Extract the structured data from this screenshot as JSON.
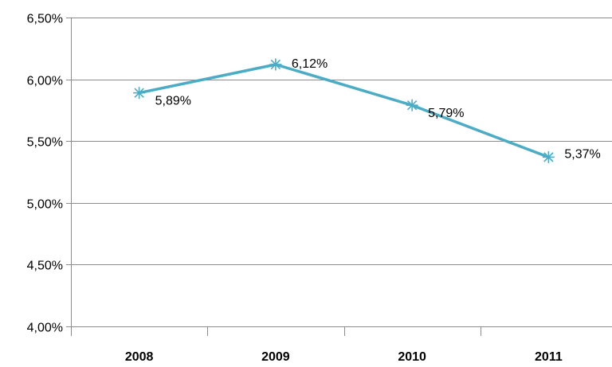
{
  "chart_data": {
    "type": "line",
    "title": "",
    "xlabel": "",
    "ylabel": "",
    "categories": [
      "2008",
      "2009",
      "2010",
      "2011"
    ],
    "series": [
      {
        "values": [
          5.89,
          6.12,
          5.79,
          5.37
        ],
        "data_labels": [
          "5,89%",
          "6,12%",
          "5,79%",
          "5,37%"
        ],
        "color": "#4bacc6",
        "marker": "asterisk"
      }
    ],
    "ylim": [
      4.0,
      6.5
    ],
    "y_ticks": [
      4.0,
      4.5,
      5.0,
      5.5,
      6.0,
      6.5
    ],
    "y_tick_labels": [
      "4,00%",
      "4,50%",
      "5,00%",
      "5,50%",
      "6,00%",
      "6,50%"
    ],
    "grid": true,
    "gridline_color": "#8c8c8c",
    "legend": "none"
  }
}
